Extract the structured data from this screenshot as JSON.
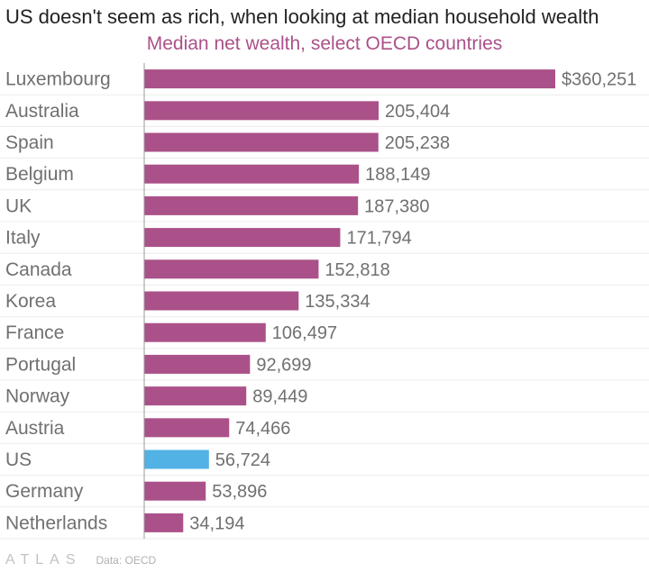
{
  "header": {
    "title": "US doesn't seem as rich, when looking at median household wealth",
    "subtitle": "Median net wealth, select OECD countries"
  },
  "footer": {
    "logo_text": "ATLAS",
    "source": "Data: OECD"
  },
  "colors": {
    "bar": "#ab5189",
    "highlight": "#52b2e5",
    "subtitle": "#ab5189",
    "label": "#707070",
    "grid": "#ececec",
    "axis": "#999999"
  },
  "chart_data": {
    "type": "bar",
    "orientation": "horizontal",
    "title": "US doesn't seem as rich, when looking at median household wealth",
    "subtitle": "Median net wealth, select OECD countries",
    "categories": [
      "Luxembourg",
      "Australia",
      "Spain",
      "Belgium",
      "UK",
      "Italy",
      "Canada",
      "Korea",
      "France",
      "Portugal",
      "Norway",
      "Austria",
      "US",
      "Germany",
      "Netherlands"
    ],
    "values": [
      360251,
      205404,
      205238,
      188149,
      187380,
      171794,
      152818,
      135334,
      106497,
      92699,
      89449,
      74466,
      56724,
      53896,
      34194
    ],
    "data_labels": [
      "$360,251",
      "205,404",
      "205,238",
      "188,149",
      "187,380",
      "171,794",
      "152,818",
      "135,334",
      "106,497",
      "92,699",
      "89,449",
      "74,466",
      "56,724",
      "53,896",
      "34,194"
    ],
    "highlight": "US",
    "xlim": [
      0,
      360251
    ],
    "grid": true,
    "legend": "none",
    "source": "Data: OECD"
  }
}
